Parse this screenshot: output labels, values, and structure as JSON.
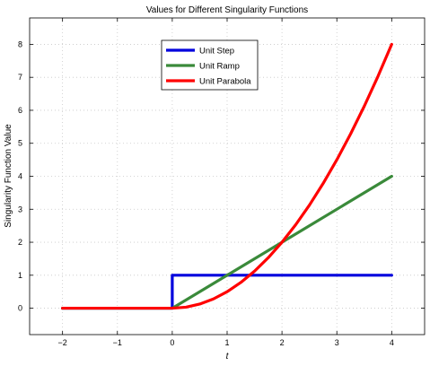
{
  "chart_data": {
    "type": "line",
    "title": "Values for Different Singularity Functions",
    "xlabel": "t",
    "ylabel": "Singularity Function Value",
    "xlim": [
      -2.6,
      4.6
    ],
    "ylim": [
      -0.8,
      8.8
    ],
    "xticks": [
      -2,
      -1,
      0,
      1,
      2,
      3,
      4
    ],
    "xtick_labels": [
      "−2",
      "−1",
      "0",
      "1",
      "2",
      "3",
      "4"
    ],
    "yticks": [
      0,
      1,
      2,
      3,
      4,
      5,
      6,
      7,
      8
    ],
    "ytick_labels": [
      "0",
      "1",
      "2",
      "3",
      "4",
      "5",
      "6",
      "7",
      "8"
    ],
    "grid": true,
    "legend_position": "top-center",
    "series": [
      {
        "name": "Unit Step",
        "color": "#0000dd",
        "x": [
          -2,
          0,
          0,
          4
        ],
        "y": [
          0,
          0,
          1,
          1
        ]
      },
      {
        "name": "Unit Ramp",
        "color": "#3a8a3a",
        "x": [
          -2,
          0,
          4
        ],
        "y": [
          0,
          0,
          4
        ]
      },
      {
        "name": "Unit Parabola",
        "color": "#ff0000",
        "x": [
          -2,
          0,
          0.25,
          0.5,
          0.75,
          1,
          1.25,
          1.5,
          1.75,
          2,
          2.25,
          2.5,
          2.75,
          3,
          3.25,
          3.5,
          3.75,
          4
        ],
        "y": [
          0,
          0,
          0.03125,
          0.125,
          0.28125,
          0.5,
          0.78125,
          1.125,
          1.53125,
          2,
          2.53125,
          3.125,
          3.78125,
          4.5,
          5.28125,
          6.125,
          7.03125,
          8
        ]
      }
    ]
  }
}
